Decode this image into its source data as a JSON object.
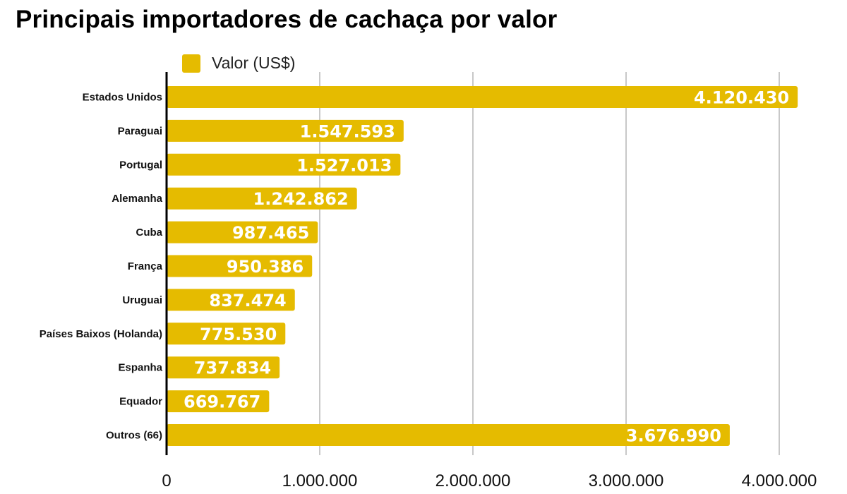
{
  "chart_data": {
    "type": "bar",
    "orientation": "horizontal",
    "title": "Principais importadores de cachaça por valor",
    "xlabel": "",
    "ylabel": "",
    "legend_position": "top-left",
    "grid": true,
    "xlim": [
      0,
      4200000
    ],
    "ticks": [
      0,
      1000000,
      2000000,
      3000000,
      4000000
    ],
    "tick_labels": [
      "0",
      "1.000.000",
      "2.000.000",
      "3.000.000",
      "4.000.000"
    ],
    "categories": [
      "Estados Unidos",
      "Paraguai",
      "Portugal",
      "Alemanha",
      "Cuba",
      "França",
      "Uruguai",
      "Países Baixos (Holanda)",
      "Espanha",
      "Equador",
      "Outros (66)"
    ],
    "series": [
      {
        "name": "Valor (US$)",
        "color": "#e5bb00",
        "values": [
          4120430,
          1547593,
          1527013,
          1242862,
          987465,
          950386,
          837474,
          775530,
          737834,
          669767,
          3676990
        ],
        "labels": [
          "4.120.430",
          "1.547.593",
          "1.527.013",
          "1.242.862",
          "987.465",
          "950.386",
          "837.474",
          "775.530",
          "737.834",
          "669.767",
          "3.676.990"
        ]
      }
    ]
  }
}
